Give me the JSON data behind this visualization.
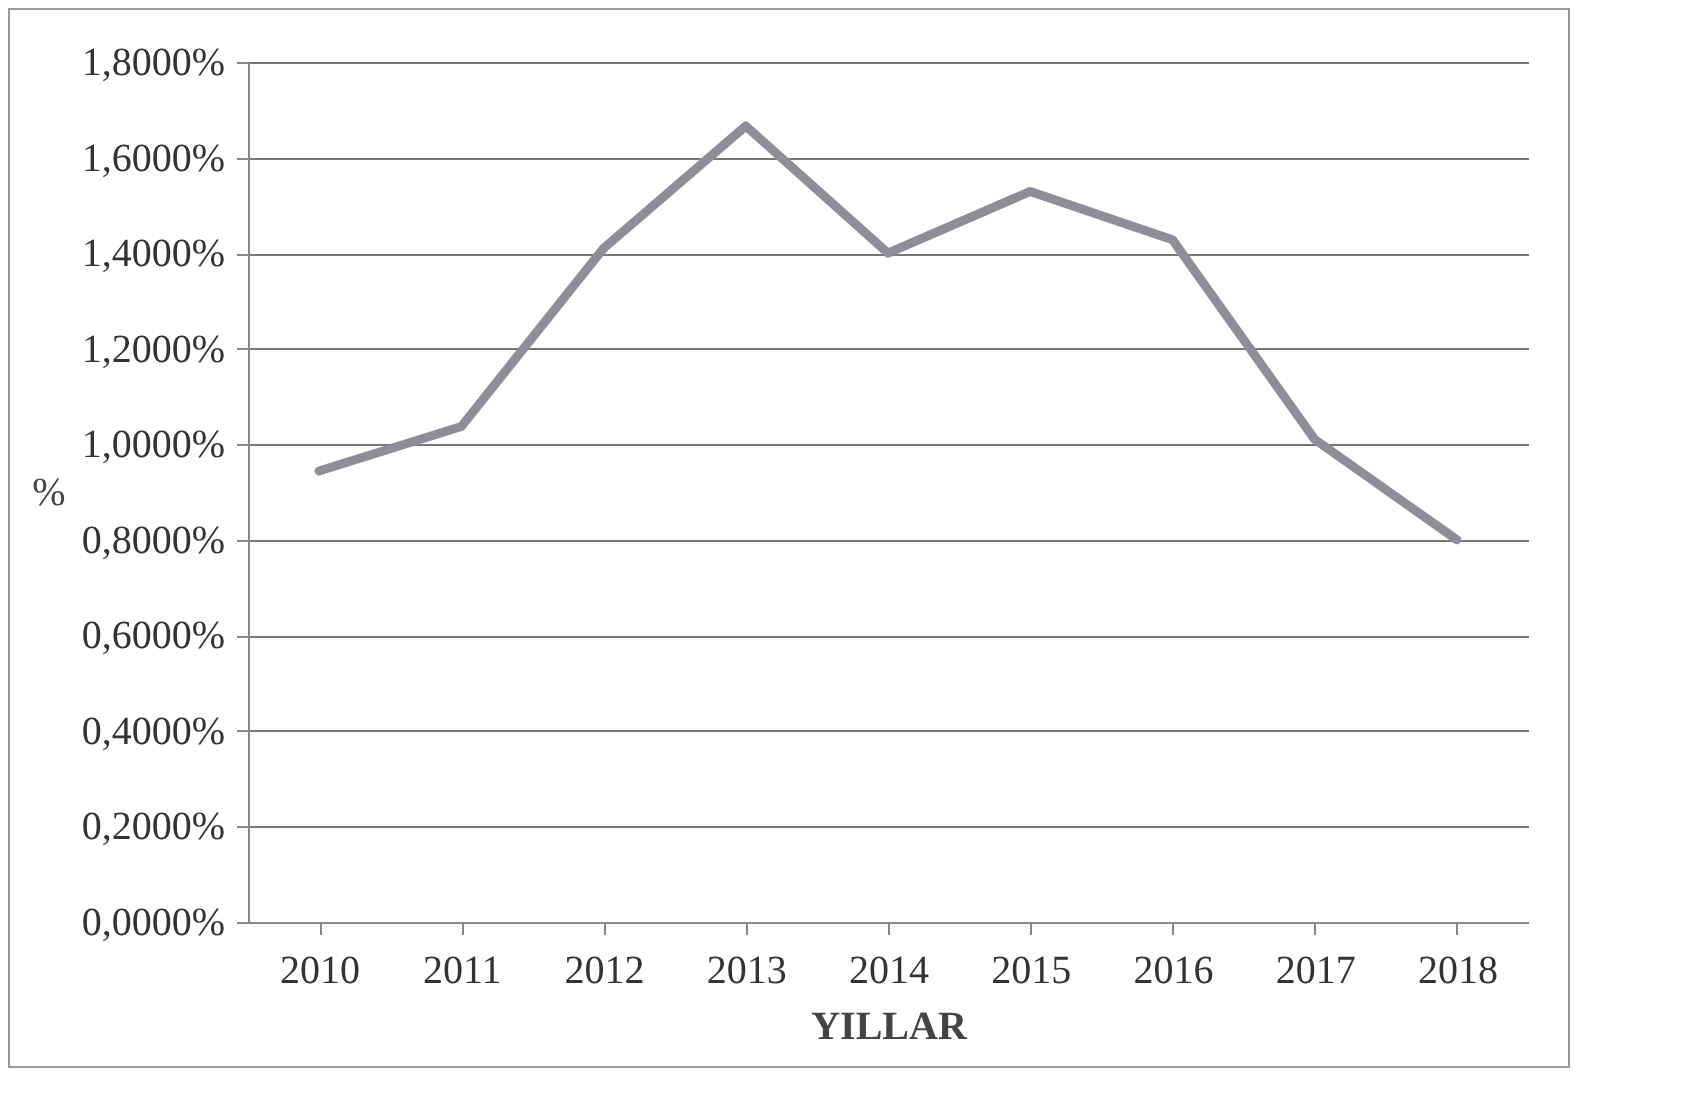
{
  "chart_data": {
    "type": "line",
    "xlabel": "YILLAR",
    "ylabel": "%",
    "categories": [
      "2010",
      "2011",
      "2012",
      "2013",
      "2014",
      "2015",
      "2016",
      "2017",
      "2018"
    ],
    "series": [
      {
        "color": "#8e8e98",
        "values": [
          0.944,
          1.037,
          1.41,
          1.666,
          1.4,
          1.529,
          1.428,
          1.01,
          0.8
        ]
      }
    ],
    "ylim": [
      0,
      1.8
    ],
    "yticks": [
      {
        "value": 0,
        "label": "0,0000%"
      },
      {
        "value": 0.2,
        "label": "0,2000%"
      },
      {
        "value": 0.4,
        "label": "0,4000%"
      },
      {
        "value": 0.6,
        "label": "0,6000%"
      },
      {
        "value": 0.8,
        "label": "0,8000%"
      },
      {
        "value": 1.0,
        "label": "1,0000%"
      },
      {
        "value": 1.2,
        "label": "1,2000%"
      },
      {
        "value": 1.4,
        "label": "1,4000%"
      },
      {
        "value": 1.6,
        "label": "1,6000%"
      },
      {
        "value": 1.8,
        "label": "1,8000%"
      }
    ],
    "grid": "y",
    "marker": "none",
    "line_style": "solid",
    "legend": false
  }
}
